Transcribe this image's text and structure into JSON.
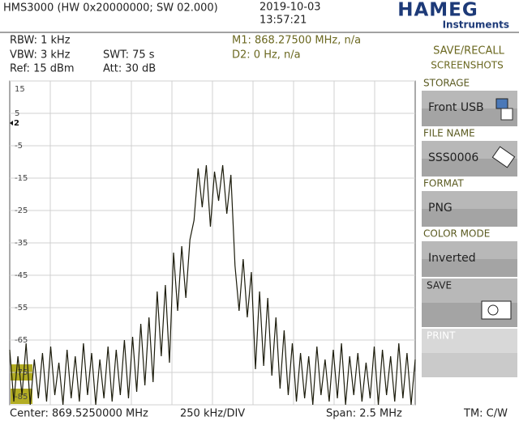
{
  "header": {
    "device": "HMS3000 (HW 0x20000000; SW 02.000)",
    "date": "2019-10-03",
    "time": "13:57:21",
    "logo": "HAMEG",
    "logo_sub": "Instruments"
  },
  "settings": {
    "rbw": "RBW: 1 kHz",
    "vbw": "VBW: 3 kHz",
    "swt": "SWT: 75 s",
    "ref": "Ref: 15 dBm",
    "att": "Att: 30 dB",
    "m1": "M1: 868.27500 MHz, n/a",
    "d2": "D2: 0 Hz, n/a"
  },
  "footer": {
    "center": "Center: 869.5250000 MHz",
    "div": "250 kHz/DIV",
    "span": "Span: 2.5 MHz",
    "tm": "TM: C/W"
  },
  "menu": {
    "title": "SAVE/RECALL",
    "subtitle": "SCREENSHOTS",
    "items": [
      {
        "label": "STORAGE",
        "value": "Front USB"
      },
      {
        "label": "FILE NAME",
        "value": "SSS0006"
      },
      {
        "label": "FORMAT",
        "value": "PNG"
      },
      {
        "label": "COLOR MODE",
        "value": "Inverted"
      },
      {
        "label": "SAVE"
      },
      {
        "label": "PRINT"
      }
    ]
  },
  "chart_data": {
    "type": "line",
    "color": "#1c1c0c",
    "grid": true,
    "marker_label": "2",
    "ylim": [
      -85,
      15
    ],
    "yticks": [
      15,
      5,
      -5,
      -15,
      -25,
      -35,
      -45,
      -55,
      -65,
      -75,
      -85
    ],
    "values": [
      -68,
      -84,
      -70,
      -82,
      -66,
      -85,
      -71,
      -83,
      -69,
      -84,
      -67,
      -82,
      -72,
      -85,
      -68,
      -83,
      -70,
      -84,
      -66,
      -82,
      -69,
      -85,
      -71,
      -83,
      -67,
      -84,
      -68,
      -82,
      -65,
      -83,
      -64,
      -81,
      -60,
      -79,
      -58,
      -78,
      -50,
      -70,
      -48,
      -72,
      -38,
      -56,
      -36,
      -52,
      -34,
      -28,
      -12,
      -24,
      -11,
      -30,
      -13,
      -22,
      -11,
      -26,
      -14,
      -42,
      -56,
      -40,
      -58,
      -44,
      -74,
      -50,
      -73,
      -52,
      -76,
      -58,
      -80,
      -62,
      -82,
      -66,
      -84,
      -69,
      -83,
      -70,
      -85,
      -67,
      -82,
      -71,
      -84,
      -68,
      -83,
      -66,
      -85,
      -70,
      -82,
      -69,
      -84,
      -72,
      -83,
      -67,
      -85,
      -68,
      -82,
      -70,
      -84,
      -66,
      -83,
      -69,
      -85,
      -71
    ]
  }
}
